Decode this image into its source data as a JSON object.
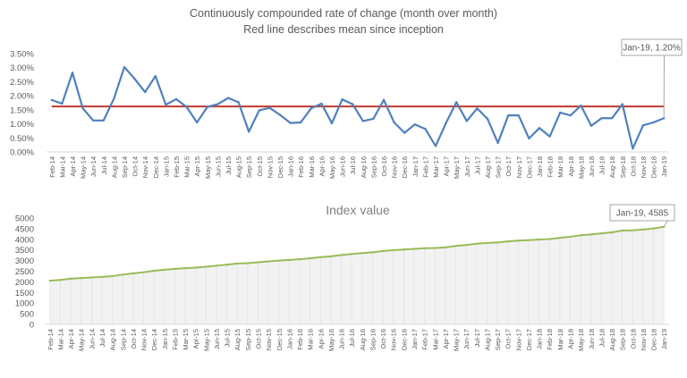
{
  "chart_data": [
    {
      "type": "line",
      "title": "Continuously compounded rate of change (month over month)",
      "subtitle": "Red line describes mean since inception",
      "categories": [
        "Feb-14",
        "Mar-14",
        "Apr-14",
        "May-14",
        "Jun-14",
        "Jul-14",
        "Aug-14",
        "Sep-14",
        "Oct-14",
        "Nov-14",
        "Dec-14",
        "Jan-15",
        "Feb-15",
        "Mar-15",
        "Apr-15",
        "May-15",
        "Jun-15",
        "Jul-15",
        "Aug-15",
        "Sep-15",
        "Oct-15",
        "Nov-15",
        "Dec-15",
        "Jan-16",
        "Feb-16",
        "Mar-16",
        "Apr-16",
        "May-16",
        "Jun-16",
        "Jul-16",
        "Aug-16",
        "Sep-16",
        "Oct-16",
        "Nov-16",
        "Dec-16",
        "Jan-17",
        "Feb-17",
        "Mar-17",
        "Apr-17",
        "May-17",
        "Jun-17",
        "Jul-17",
        "Aug-17",
        "Sep-17",
        "Oct-17",
        "Nov-17",
        "Dec-17",
        "Jan-18",
        "Feb-18",
        "Mar-18",
        "Apr-18",
        "May-18",
        "Jun-18",
        "Jul-18",
        "Aug-18",
        "Sep-18",
        "Oct-18",
        "Nov-18",
        "Dec-18",
        "Jan-19"
      ],
      "series": [
        {
          "values": [
            1.85,
            1.72,
            2.82,
            1.55,
            1.12,
            1.12,
            1.9,
            3.02,
            2.6,
            2.13,
            2.7,
            1.68,
            1.88,
            1.6,
            1.05,
            1.6,
            1.7,
            1.92,
            1.77,
            0.72,
            1.48,
            1.57,
            1.32,
            1.03,
            1.05,
            1.55,
            1.72,
            1.02,
            1.87,
            1.7,
            1.1,
            1.18,
            1.85,
            1.05,
            0.68,
            0.98,
            0.82,
            0.21,
            1.03,
            1.77,
            1.1,
            1.55,
            1.18,
            0.32,
            1.3,
            1.3,
            0.48,
            0.85,
            0.55,
            1.4,
            1.3,
            1.65,
            0.93,
            1.2,
            1.2,
            1.7,
            0.12,
            0.95,
            1.05,
            1.2
          ]
        },
        {
          "values": [
            1.62,
            1.62,
            1.62,
            1.62,
            1.62,
            1.62,
            1.62,
            1.62,
            1.62,
            1.62,
            1.62,
            1.62,
            1.62,
            1.62,
            1.62,
            1.62,
            1.62,
            1.62,
            1.62,
            1.62,
            1.62,
            1.62,
            1.62,
            1.62,
            1.62,
            1.62,
            1.62,
            1.62,
            1.62,
            1.62,
            1.62,
            1.62,
            1.62,
            1.62,
            1.62,
            1.62,
            1.62,
            1.62,
            1.62,
            1.62,
            1.62,
            1.62,
            1.62,
            1.62,
            1.62,
            1.62,
            1.62,
            1.62,
            1.62,
            1.62,
            1.62,
            1.62,
            1.62,
            1.62,
            1.62,
            1.62,
            1.62,
            1.62,
            1.62,
            1.62
          ]
        }
      ],
      "ytick_labels": [
        "0.00%",
        "0.50%",
        "1.00%",
        "1.50%",
        "2.00%",
        "2.50%",
        "3.00%",
        "3.50%"
      ],
      "ylim": [
        0,
        3.5
      ],
      "callout": "Jan-19, 1.20%",
      "colors": {
        "rate": "#4f81bd",
        "mean": "#c0392b"
      },
      "grid": false
    },
    {
      "type": "area",
      "title": "Index value",
      "categories": [
        "Feb-14",
        "Mar-14",
        "Apr-14",
        "May-14",
        "Jun-14",
        "Jul-14",
        "Aug-14",
        "Sep-14",
        "Oct-14",
        "Nov-14",
        "Dec-14",
        "Jan-15",
        "Feb-15",
        "Mar-15",
        "Apr-15",
        "May-15",
        "Jun-15",
        "Jul-15",
        "Aug-15",
        "Sep-15",
        "Oct-15",
        "Nov-15",
        "Dec-15",
        "Jan-16",
        "Feb-16",
        "Mar-16",
        "Apr-16",
        "May-16",
        "Jun-16",
        "Jul-16",
        "Aug-16",
        "Sep-16",
        "Oct-16",
        "Nov-16",
        "Dec-16",
        "Jan-17",
        "Feb-17",
        "Mar-17",
        "Apr-17",
        "May-17",
        "Jun-17",
        "Jul-17",
        "Aug-17",
        "Sep-17",
        "Oct-17",
        "Nov-17",
        "Dec-17",
        "Jan-18",
        "Feb-18",
        "Mar-18",
        "Apr-18",
        "May-18",
        "Jun-18",
        "Jul-18",
        "Aug-18",
        "Sep-18",
        "Oct-18",
        "Nov-18",
        "Dec-18",
        "Jan-19"
      ],
      "series": [
        {
          "values": [
            2055,
            2090,
            2150,
            2180,
            2205,
            2230,
            2270,
            2340,
            2400,
            2450,
            2520,
            2570,
            2610,
            2640,
            2670,
            2710,
            2760,
            2810,
            2860,
            2880,
            2920,
            2960,
            3000,
            3030,
            3060,
            3110,
            3160,
            3200,
            3260,
            3310,
            3350,
            3390,
            3450,
            3490,
            3520,
            3550,
            3580,
            3590,
            3620,
            3690,
            3730,
            3790,
            3830,
            3850,
            3900,
            3940,
            3960,
            3990,
            4010,
            4070,
            4120,
            4190,
            4230,
            4280,
            4330,
            4410,
            4420,
            4460,
            4510,
            4585
          ]
        }
      ],
      "ytick_labels": [
        "0",
        "500",
        "1000",
        "1500",
        "2000",
        "2500",
        "3000",
        "3500",
        "4000",
        "4500",
        "5000"
      ],
      "ylim": [
        0,
        5000
      ],
      "callout": "Jan-19, 4585",
      "colors": {
        "line": "#9bbb59",
        "fill": "#f2f2f2"
      },
      "grid": false
    }
  ]
}
